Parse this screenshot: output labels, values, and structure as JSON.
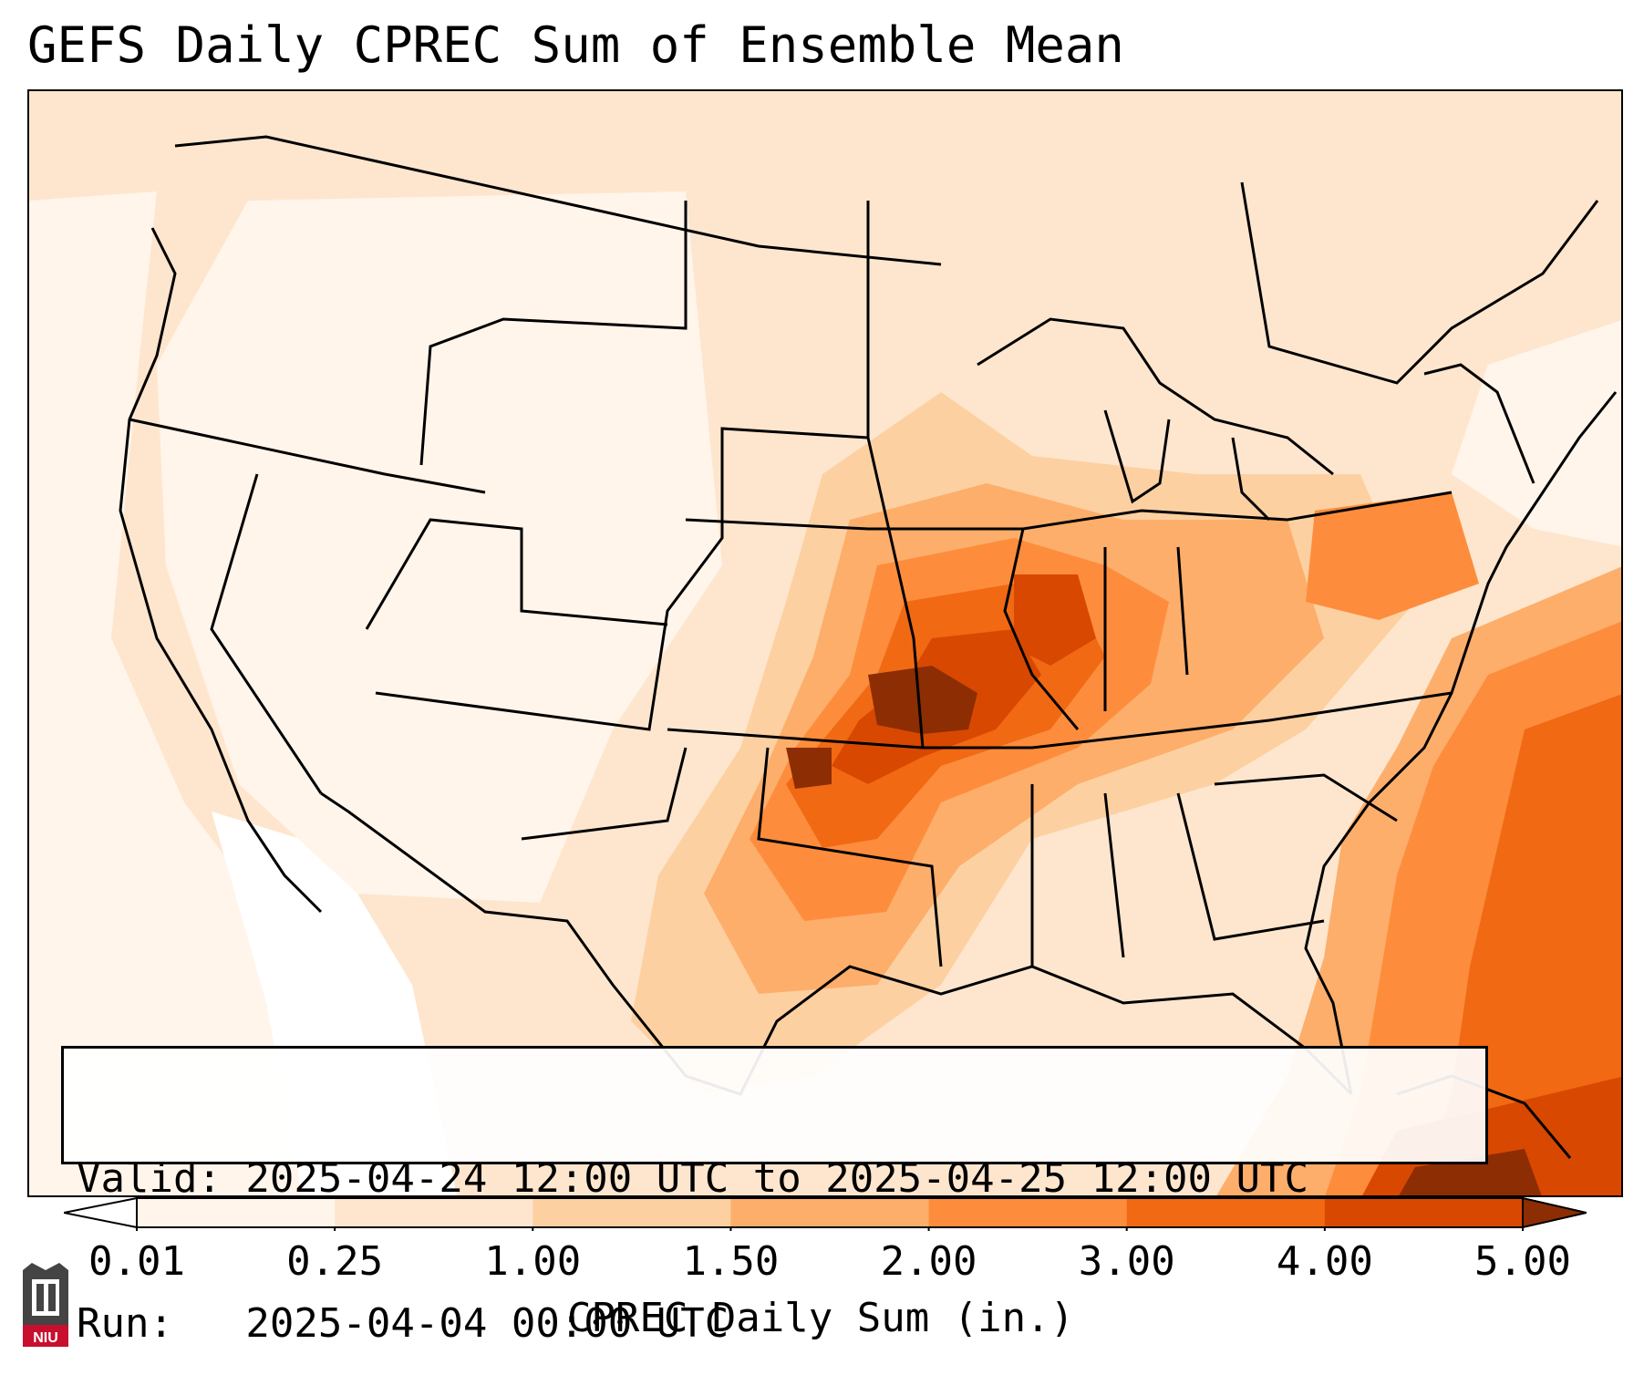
{
  "title": "GEFS Daily CPREC Sum of Ensemble Mean",
  "info": {
    "valid_line": "Valid: 2025-04-24 12:00 UTC to 2025-04-25 12:00 UTC",
    "run_line": "Run:   2025-04-04 00:00 UTC"
  },
  "colorbar": {
    "label": "CPREC Daily Sum (in.)",
    "ticks": [
      "0.01",
      "0.25",
      "1.00",
      "1.50",
      "2.00",
      "3.00",
      "4.00",
      "5.00"
    ],
    "colors": [
      "#fff5eb",
      "#fee6ce",
      "#fdd0a2",
      "#fdae6b",
      "#fd8d3c",
      "#f16913",
      "#d94801",
      "#8c2d04"
    ],
    "extend": "both"
  },
  "map": {
    "region": "Continental United States",
    "projection": "Lambert conformal",
    "fill_colors": {
      "none": "#ffffff",
      "lightest": "#fff5eb",
      "light": "#fee6ce",
      "light_mid": "#fdd0a2",
      "mid": "#fdae6b",
      "mid_high": "#fd8d3c",
      "high": "#f16913",
      "very_high": "#d94801",
      "max": "#8c2d04"
    }
  },
  "logo": {
    "name": "NIU",
    "text": "NIU",
    "icon": "niu-tower-icon"
  }
}
